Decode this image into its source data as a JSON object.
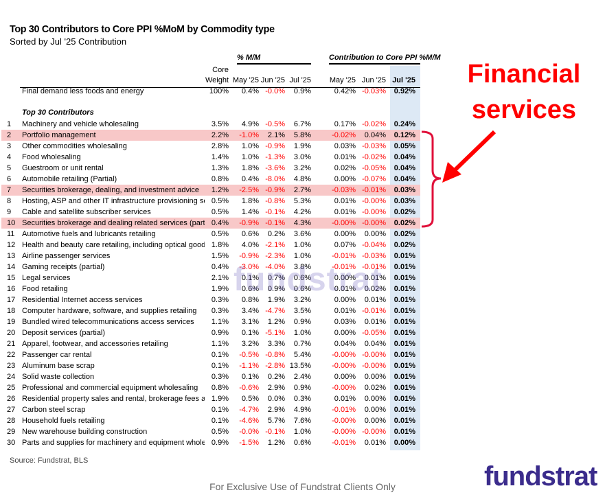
{
  "title": "Top 30 Contributors to Core PPI %MoM by Commodity type",
  "subtitle": "Sorted by Jul '25 Contribution",
  "groups": {
    "mm": "% M/M",
    "contrib": "Contribution to Core PPI %M/M"
  },
  "headers": {
    "core": "Core",
    "weight": "Weight",
    "may": "May '25",
    "jun": "Jun '25",
    "jul": "Jul '25",
    "cmay": "May '25",
    "cjun": "Jun '25",
    "cjul": "Jul '25"
  },
  "total": {
    "name": "Final demand less foods and energy",
    "cells": [
      "100%",
      "0.4%",
      "-0.0%",
      "0.9%",
      "0.42%",
      "-0.03%",
      "0.92%"
    ]
  },
  "section_label": "Top 30 Contributors",
  "highlight_color": "#f8c8c8",
  "negative_color": "#ff0000",
  "rows": [
    {
      "n": "1",
      "name": "Machinery and vehicle wholesaling",
      "cells": [
        "3.5%",
        "4.9%",
        "-0.5%",
        "6.7%",
        "0.17%",
        "-0.02%",
        "0.24%"
      ]
    },
    {
      "n": "2",
      "name": "Portfolio management",
      "hl": true,
      "cells": [
        "2.2%",
        "-1.0%",
        "2.1%",
        "5.8%",
        "-0.02%",
        "0.04%",
        "0.12%"
      ]
    },
    {
      "n": "3",
      "name": "Other commodities wholesaling",
      "cells": [
        "2.8%",
        "1.0%",
        "-0.9%",
        "1.9%",
        "0.03%",
        "-0.03%",
        "0.05%"
      ]
    },
    {
      "n": "4",
      "name": "Food wholesaling",
      "cells": [
        "1.4%",
        "1.0%",
        "-1.3%",
        "3.0%",
        "0.01%",
        "-0.02%",
        "0.04%"
      ]
    },
    {
      "n": "5",
      "name": "Guestroom or unit rental",
      "cells": [
        "1.3%",
        "1.8%",
        "-3.6%",
        "3.2%",
        "0.02%",
        "-0.05%",
        "0.04%"
      ]
    },
    {
      "n": "6",
      "name": "Automobile retailing (Partial)",
      "cells": [
        "0.8%",
        "0.4%",
        "-8.0%",
        "4.8%",
        "0.00%",
        "-0.07%",
        "0.04%"
      ]
    },
    {
      "n": "7",
      "name": "Securities brokerage, dealing, and investment advice",
      "hl": true,
      "cells": [
        "1.2%",
        "-2.5%",
        "-0.9%",
        "2.7%",
        "-0.03%",
        "-0.01%",
        "0.03%"
      ]
    },
    {
      "n": "8",
      "name": "Hosting, ASP and other IT infrastructure provisioning services",
      "cells": [
        "0.5%",
        "1.8%",
        "-0.8%",
        "5.3%",
        "0.01%",
        "-0.00%",
        "0.03%"
      ]
    },
    {
      "n": "9",
      "name": "Cable and satellite subscriber services",
      "cells": [
        "0.5%",
        "1.4%",
        "-0.1%",
        "4.2%",
        "0.01%",
        "-0.00%",
        "0.02%"
      ]
    },
    {
      "n": "10",
      "name": "Securities brokerage and dealing related services (partial)",
      "hl": true,
      "cells": [
        "0.4%",
        "-0.9%",
        "-0.1%",
        "4.3%",
        "-0.00%",
        "-0.00%",
        "0.02%"
      ]
    },
    {
      "n": "11",
      "name": "Automotive fuels and lubricants retailing",
      "cells": [
        "0.5%",
        "0.6%",
        "0.2%",
        "3.6%",
        "0.00%",
        "0.00%",
        "0.02%"
      ]
    },
    {
      "n": "12",
      "name": "Health and beauty care retailing, including optical goods",
      "cells": [
        "1.8%",
        "4.0%",
        "-2.1%",
        "1.0%",
        "0.07%",
        "-0.04%",
        "0.02%"
      ]
    },
    {
      "n": "13",
      "name": "Airline passenger services",
      "cells": [
        "1.5%",
        "-0.9%",
        "-2.3%",
        "1.0%",
        "-0.01%",
        "-0.03%",
        "0.01%"
      ]
    },
    {
      "n": "14",
      "name": "Gaming receipts (partial)",
      "cells": [
        "0.4%",
        "-3.0%",
        "-4.0%",
        "3.8%",
        "-0.01%",
        "-0.01%",
        "0.01%"
      ]
    },
    {
      "n": "15",
      "name": "Legal services",
      "cells": [
        "2.1%",
        "0.1%",
        "0.7%",
        "0.6%",
        "0.00%",
        "0.01%",
        "0.01%"
      ]
    },
    {
      "n": "16",
      "name": "Food retailing",
      "cells": [
        "1.9%",
        "0.6%",
        "0.9%",
        "0.6%",
        "0.01%",
        "0.02%",
        "0.01%"
      ]
    },
    {
      "n": "17",
      "name": "Residential Internet access services",
      "cells": [
        "0.3%",
        "0.8%",
        "1.9%",
        "3.2%",
        "0.00%",
        "0.01%",
        "0.01%"
      ]
    },
    {
      "n": "18",
      "name": "Computer hardware, software, and supplies retailing",
      "cells": [
        "0.3%",
        "3.4%",
        "-4.7%",
        "3.5%",
        "0.01%",
        "-0.01%",
        "0.01%"
      ]
    },
    {
      "n": "19",
      "name": "Bundled wired telecommunications access services",
      "cells": [
        "1.1%",
        "3.1%",
        "1.2%",
        "0.9%",
        "0.03%",
        "0.01%",
        "0.01%"
      ]
    },
    {
      "n": "20",
      "name": "Deposit services (partial)",
      "cells": [
        "0.9%",
        "0.1%",
        "-5.1%",
        "1.0%",
        "0.00%",
        "-0.05%",
        "0.01%"
      ]
    },
    {
      "n": "21",
      "name": "Apparel, footwear, and accessories retailing",
      "cells": [
        "1.1%",
        "3.2%",
        "3.3%",
        "0.7%",
        "0.04%",
        "0.04%",
        "0.01%"
      ]
    },
    {
      "n": "22",
      "name": "Passenger car rental",
      "cells": [
        "0.1%",
        "-0.5%",
        "-0.8%",
        "5.4%",
        "-0.00%",
        "-0.00%",
        "0.01%"
      ]
    },
    {
      "n": "23",
      "name": "Aluminum base scrap",
      "cells": [
        "0.1%",
        "-1.1%",
        "-2.8%",
        "13.5%",
        "-0.00%",
        "-0.00%",
        "0.01%"
      ]
    },
    {
      "n": "24",
      "name": "Solid waste collection",
      "cells": [
        "0.3%",
        "0.1%",
        "0.2%",
        "2.4%",
        "0.00%",
        "0.00%",
        "0.01%"
      ]
    },
    {
      "n": "25",
      "name": "Professional and commercial equipment wholesaling",
      "cells": [
        "0.8%",
        "-0.6%",
        "2.9%",
        "0.9%",
        "-0.00%",
        "0.02%",
        "0.01%"
      ]
    },
    {
      "n": "26",
      "name": "Residential property sales and rental, brokerage fees and",
      "cells": [
        "1.9%",
        "0.5%",
        "0.0%",
        "0.3%",
        "0.01%",
        "0.00%",
        "0.01%"
      ]
    },
    {
      "n": "27",
      "name": "Carbon steel scrap",
      "cells": [
        "0.1%",
        "-4.7%",
        "2.9%",
        "4.9%",
        "-0.01%",
        "0.00%",
        "0.01%"
      ]
    },
    {
      "n": "28",
      "name": "Household fuels retailing",
      "cells": [
        "0.1%",
        "-4.6%",
        "5.7%",
        "7.6%",
        "-0.00%",
        "0.00%",
        "0.01%"
      ]
    },
    {
      "n": "29",
      "name": "New warehouse building construction",
      "cells": [
        "0.5%",
        "-0.0%",
        "-0.1%",
        "1.0%",
        "-0.00%",
        "-0.00%",
        "0.01%"
      ]
    },
    {
      "n": "30",
      "name": "Parts and supplies for machinery and equipment wholesaling",
      "cells": [
        "0.9%",
        "-1.5%",
        "1.2%",
        "0.6%",
        "-0.01%",
        "0.01%",
        "0.00%"
      ]
    }
  ],
  "annotation": {
    "line1": "Financial",
    "line2": "services",
    "color": "#ff0000"
  },
  "watermark": "fundstrat",
  "source": "Source: Fundstrat, BLS",
  "footer": "For Exclusive Use of Fundstrat Clients Only",
  "logo": "fundstrat",
  "logo_color": "#3b2c8c"
}
